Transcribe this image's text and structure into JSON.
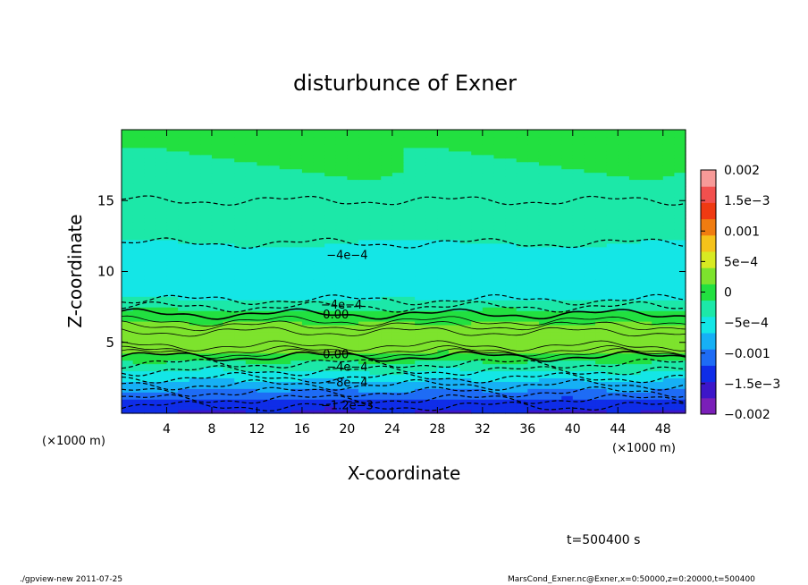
{
  "chart_data": {
    "type": "heatmap",
    "title": "disturbunce of Exner",
    "xlabel": "X-coordinate",
    "ylabel": "Z-coordinate",
    "x_unit": "(×1000 m)",
    "y_unit": "(×1000 m)",
    "xlim": [
      0,
      50
    ],
    "ylim": [
      0,
      20
    ],
    "x_ticks": [
      4,
      8,
      12,
      16,
      20,
      24,
      28,
      32,
      36,
      40,
      44,
      48
    ],
    "y_ticks": [
      5,
      10,
      15
    ],
    "grid": false,
    "colorbar": {
      "placement": "right",
      "range": [
        -0.002,
        0.002
      ],
      "tick_values": [
        0.002,
        0.0015,
        0.001,
        0.0005,
        0,
        -0.0005,
        -0.001,
        -0.0015,
        -0.002
      ],
      "tick_labels": [
        "0.002",
        "1.5e−3",
        "0.001",
        "5e−4",
        "0",
        "−5e−4",
        "−0.001",
        "−1.5e−3",
        "−0.002"
      ],
      "colors": [
        "#7a1fb8",
        "#3d16c9",
        "#0f2de8",
        "#1e6cf5",
        "#16b0f5",
        "#14e6e6",
        "#1ce8a8",
        "#22e040",
        "#7de32d",
        "#d8ea22",
        "#f5c21a",
        "#f07c10",
        "#ef3a12",
        "#f2504e",
        "#f79a98"
      ]
    },
    "profile": {
      "z": [
        0.0,
        0.5,
        1.0,
        1.5,
        2.0,
        2.5,
        3.0,
        3.5,
        4.0,
        4.5,
        5.0,
        5.5,
        6.0,
        6.5,
        7.0,
        7.5,
        8.0,
        9.0,
        10.0,
        11.0,
        12.0,
        13.0,
        14.0,
        15.0,
        16.0,
        17.0,
        18.0,
        19.0,
        20.0
      ],
      "value": [
        -0.0015,
        -0.0014,
        -0.0012,
        -0.001,
        -0.0008,
        -0.0006,
        -0.0004,
        -0.0002,
        0.0,
        0.00025,
        0.00035,
        0.00035,
        0.00025,
        0.0001,
        0.0,
        -0.0002,
        -0.0004,
        -0.0005,
        -0.00048,
        -0.00045,
        -0.0004,
        -0.0003,
        -0.00025,
        -0.0002,
        -0.00018,
        -0.00015,
        -0.00012,
        -0.0001,
        -8e-05
      ]
    },
    "contour_labels": [
      {
        "text": "−4e−4",
        "x": 20,
        "z": 11.2
      },
      {
        "text": "−4e−4",
        "x": 19.5,
        "z": 7.7
      },
      {
        "text": "0.00",
        "x": 19,
        "z": 7.0
      },
      {
        "text": "0.00",
        "x": 19,
        "z": 4.2
      },
      {
        "text": "−4e−4",
        "x": 20,
        "z": 3.3
      },
      {
        "text": "−8e−4",
        "x": 20,
        "z": 2.2
      },
      {
        "text": "−1.2e−3",
        "x": 20,
        "z": 0.6
      }
    ],
    "annotation": "t=500400 s"
  },
  "footer": {
    "left": "./gpview-new   2011-07-25",
    "right": "MarsCond_Exner.nc@Exner,x=0:50000,z=0:20000,t=500400"
  }
}
